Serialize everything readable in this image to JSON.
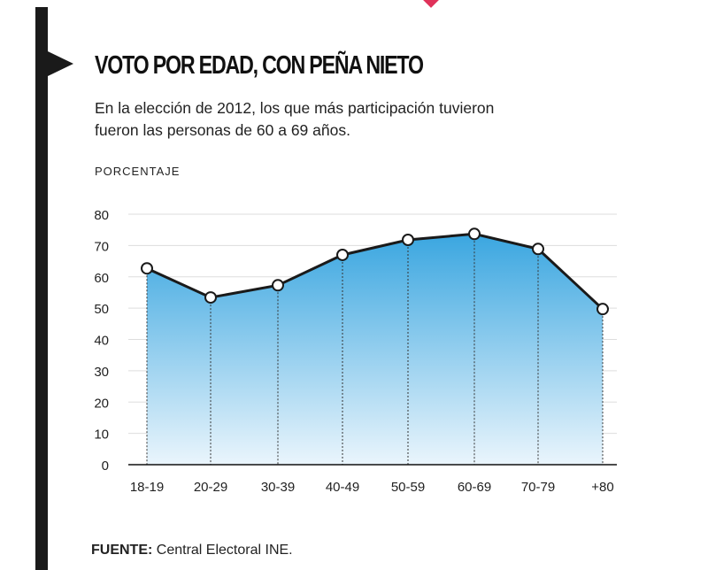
{
  "chart_data": {
    "type": "area",
    "title": "VOTO POR EDAD, CON PEÑA NIETO",
    "subtitle": "En la elección de 2012, los que más participación tuvieron fueron las personas de 60 a 69 años.",
    "ylabel": "PORCENTAJE",
    "xlabel": "",
    "categories": [
      "18-19",
      "20-29",
      "30-39",
      "40-49",
      "50-59",
      "60-69",
      "70-79",
      "+80"
    ],
    "values": [
      62.7,
      53.4,
      57.3,
      67,
      71.8,
      73.7,
      68.9,
      49.7
    ],
    "ylim": [
      0,
      80
    ],
    "yticks": [
      0,
      10,
      20,
      30,
      40,
      50,
      60,
      70,
      80
    ],
    "grid": true,
    "colors": {
      "line": "#1a1a1a",
      "fill_top": "#3aa6e0",
      "fill_bottom": "#eaf5fc",
      "accent": "#1a1a1a"
    }
  },
  "source": {
    "label": "FUENTE:",
    "text": " Central Electoral INE."
  }
}
